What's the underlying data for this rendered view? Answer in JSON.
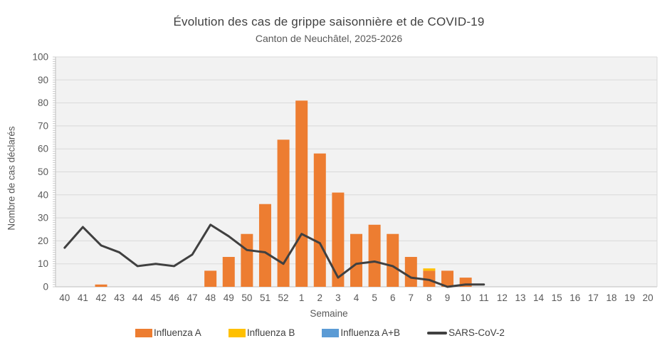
{
  "chart_data": {
    "type": "bar",
    "title": "Évolution des cas de grippe saisonnière et de COVID-19",
    "subtitle": "Canton de Neuchâtel, 2025-2026",
    "xlabel": "Semaine",
    "ylabel": "Nombre de cas déclarés",
    "ylim": [
      0,
      100
    ],
    "ytick_step": 10,
    "grid": true,
    "legend_position": "bottom",
    "categories": [
      "40",
      "41",
      "42",
      "43",
      "44",
      "45",
      "46",
      "47",
      "48",
      "49",
      "50",
      "51",
      "52",
      "1",
      "2",
      "3",
      "4",
      "5",
      "6",
      "7",
      "8",
      "9",
      "10",
      "11",
      "12",
      "13",
      "14",
      "15",
      "16",
      "17",
      "18",
      "19",
      "20"
    ],
    "series": [
      {
        "name": "Influenza A",
        "type": "bar",
        "color": "#ED7D31",
        "values": [
          0,
          0,
          1,
          0,
          0,
          0,
          0,
          0,
          7,
          13,
          23,
          36,
          64,
          81,
          58,
          41,
          23,
          27,
          23,
          13,
          7,
          7,
          4,
          0,
          0,
          0,
          0,
          0,
          0,
          0,
          0,
          0,
          0
        ]
      },
      {
        "name": "Influenza B",
        "type": "bar",
        "color": "#FFC000",
        "values": [
          0,
          0,
          0,
          0,
          0,
          0,
          0,
          0,
          0,
          0,
          0,
          0,
          0,
          0,
          0,
          0,
          0,
          0,
          0,
          0,
          1,
          0,
          0,
          0,
          0,
          0,
          0,
          0,
          0,
          0,
          0,
          0,
          0
        ]
      },
      {
        "name": "Influenza A+B",
        "type": "bar",
        "color": "#5B9BD5",
        "values": [
          0,
          0,
          0,
          0,
          0,
          0,
          0,
          0,
          0,
          0,
          0,
          0,
          0,
          0,
          0,
          0,
          0,
          0,
          0,
          0,
          0,
          0,
          0,
          0,
          0,
          0,
          0,
          0,
          0,
          0,
          0,
          0,
          0
        ]
      },
      {
        "name": "SARS-CoV-2",
        "type": "line",
        "color": "#404040",
        "values": [
          17,
          26,
          18,
          15,
          9,
          10,
          9,
          14,
          27,
          22,
          16,
          15,
          10,
          23,
          19,
          4,
          10,
          11,
          9,
          4,
          3,
          0,
          1,
          1,
          null,
          null,
          null,
          null,
          null,
          null,
          null,
          null,
          null
        ]
      }
    ]
  },
  "colors": {
    "plot_bg": "#F2F2F2",
    "grid": "#D9D9D9",
    "axis_line": "#BFBFBF",
    "axis_text": "#595959",
    "title_text": "#404040",
    "page_bg": "#FFFFFF"
  }
}
